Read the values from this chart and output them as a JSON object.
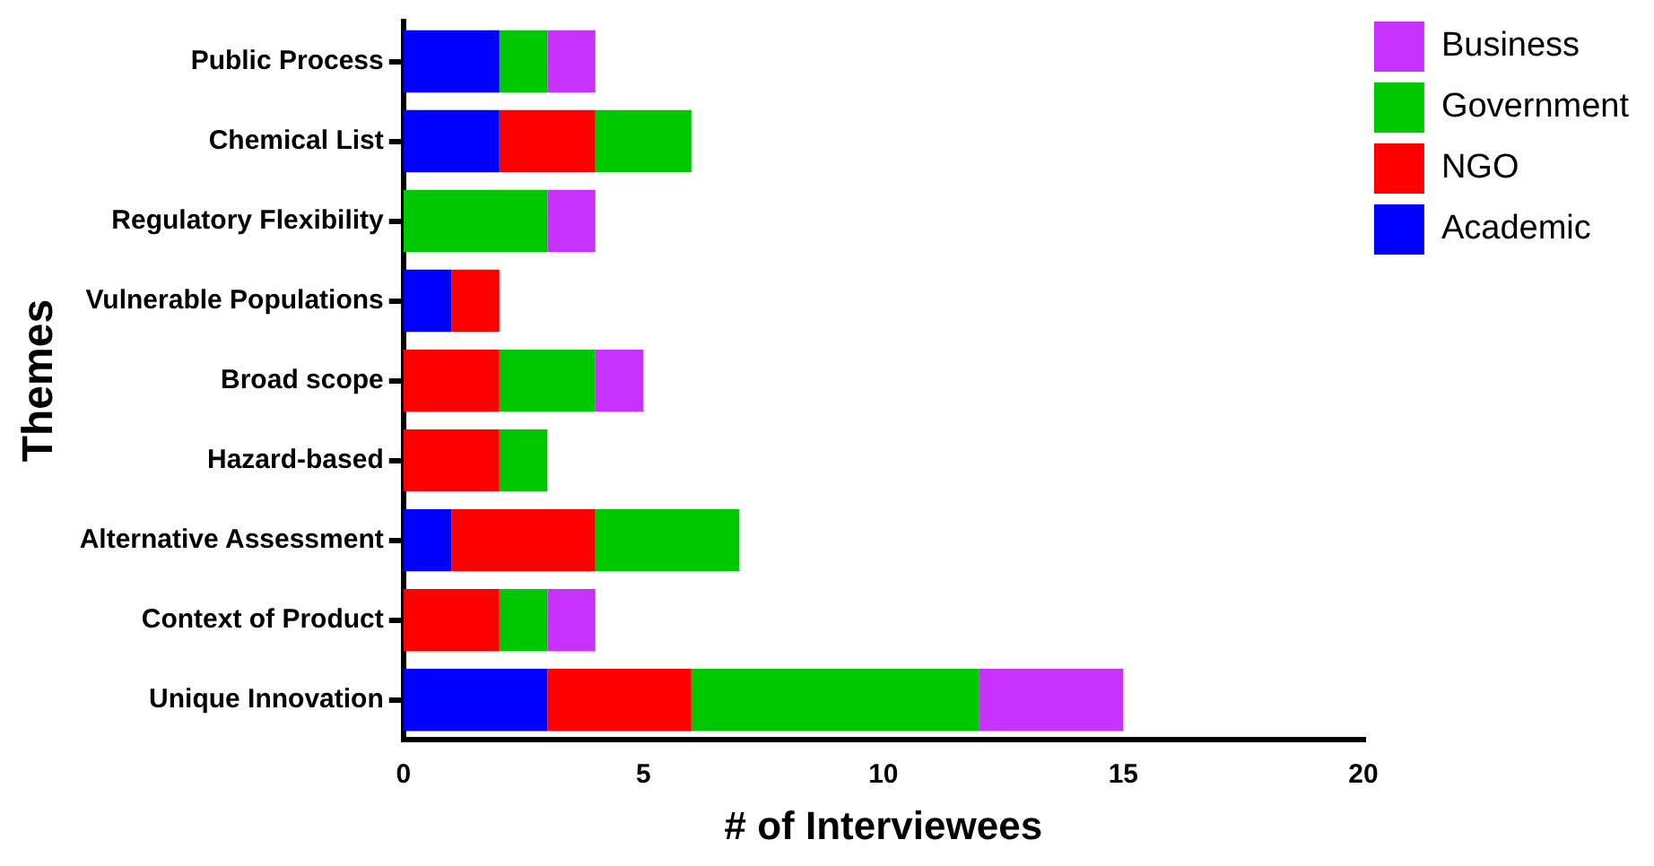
{
  "chart_data": {
    "type": "bar",
    "orientation": "horizontal",
    "stacked": true,
    "xlabel": "# of Interviewees",
    "ylabel": "Themes",
    "categories": [
      "Public Process",
      "Chemical List",
      "Regulatory Flexibility",
      "Vulnerable Populations",
      "Broad scope",
      "Hazard-based",
      "Alternative Assessment",
      "Context of Product",
      "Unique Innovation"
    ],
    "series": [
      {
        "name": "Academic",
        "color": "#0000ff",
        "values": [
          2,
          2,
          0,
          1,
          0,
          0,
          1,
          0,
          3
        ]
      },
      {
        "name": "NGO",
        "color": "#ff0000",
        "values": [
          0,
          2,
          0,
          1,
          2,
          2,
          3,
          2,
          3
        ]
      },
      {
        "name": "Government",
        "color": "#00c800",
        "values": [
          1,
          2,
          3,
          0,
          2,
          1,
          3,
          1,
          6
        ]
      },
      {
        "name": "Business",
        "color": "#c832ff",
        "values": [
          1,
          0,
          1,
          0,
          1,
          0,
          0,
          1,
          3
        ]
      }
    ],
    "xlim": [
      0,
      20
    ],
    "xticks": [
      0,
      5,
      10,
      15,
      20
    ],
    "grid": false,
    "legend": "right"
  }
}
